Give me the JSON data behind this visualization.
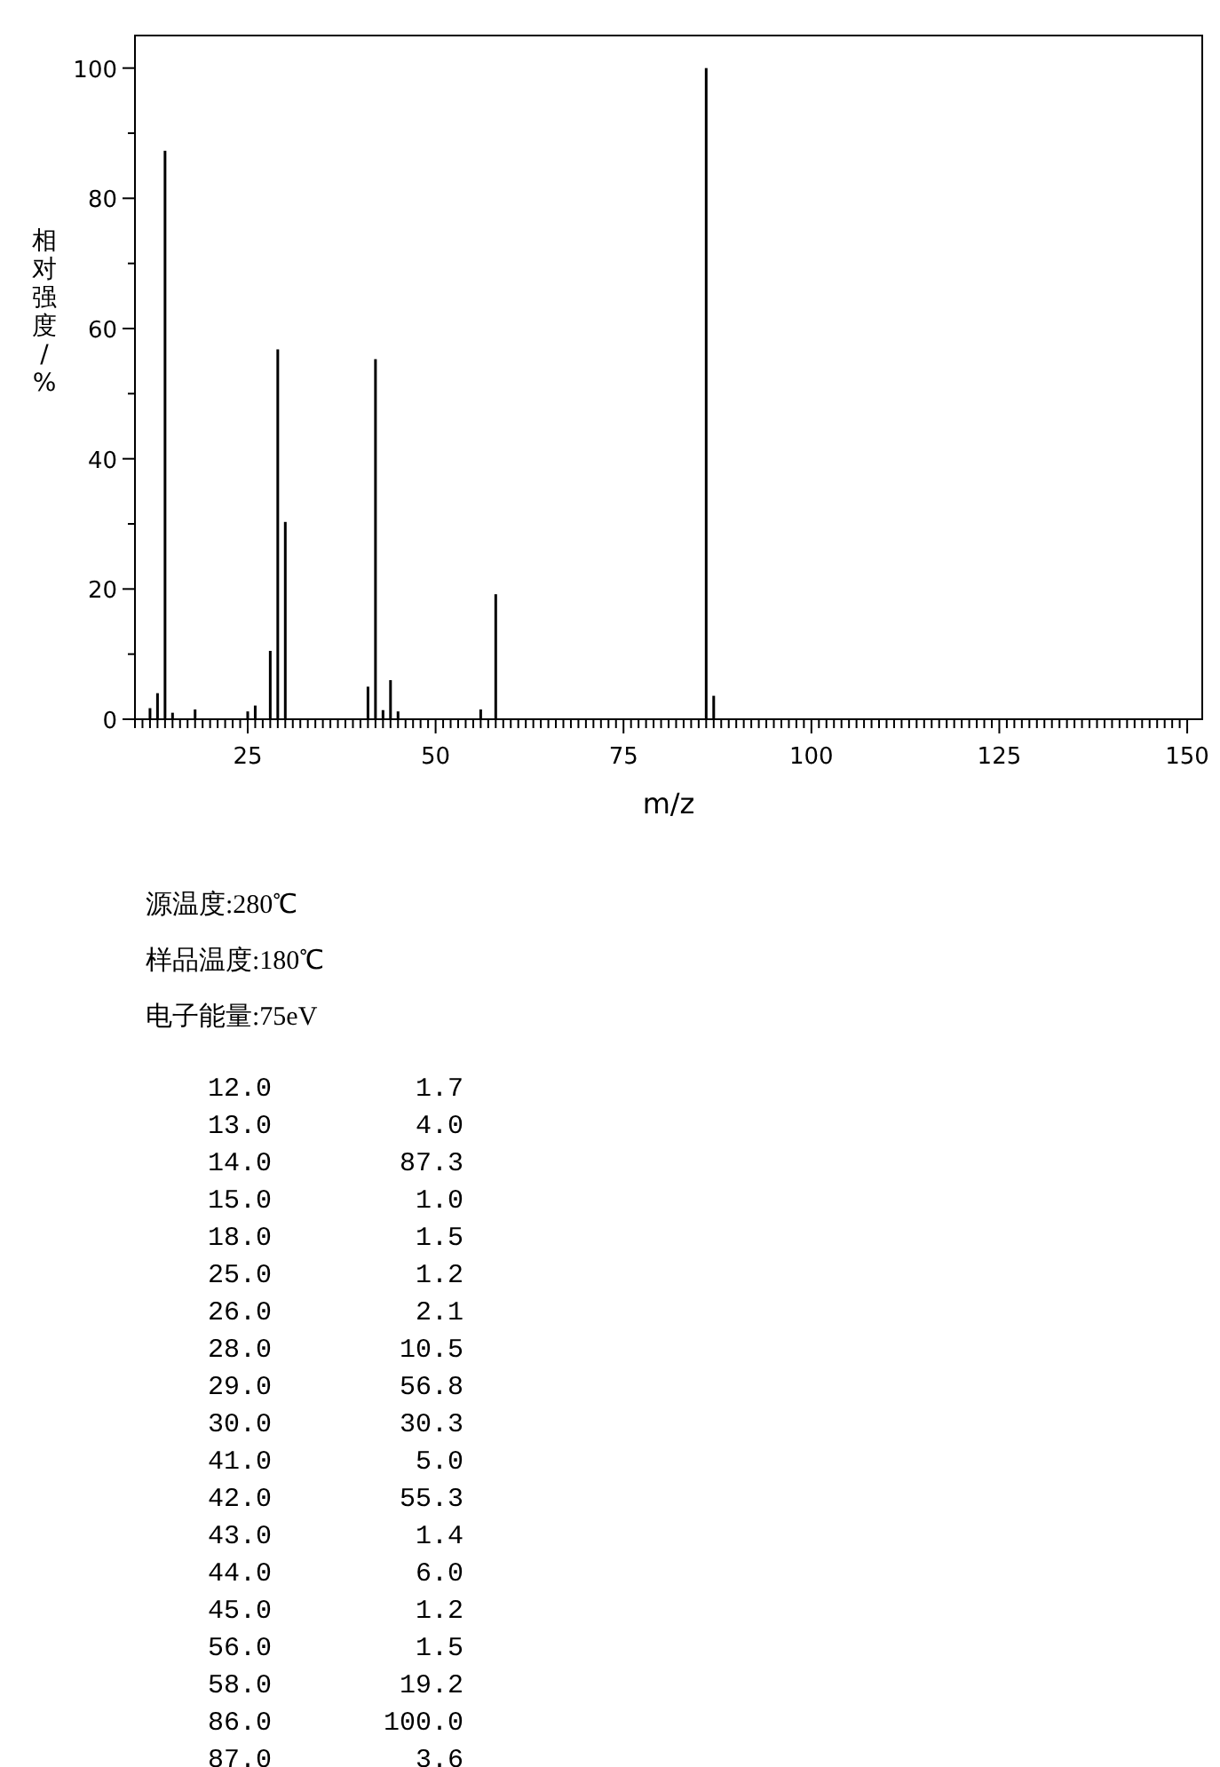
{
  "chart_data": [
    {
      "type": "bar",
      "xlabel": "m/z",
      "ylabel": "相对强度/%",
      "x": [
        12,
        13,
        14,
        15,
        18,
        25,
        26,
        28,
        29,
        30,
        41,
        42,
        43,
        44,
        45,
        56,
        58,
        86,
        87
      ],
      "values": [
        1.7,
        4.0,
        87.3,
        1.0,
        1.5,
        1.2,
        2.1,
        10.5,
        56.8,
        30.3,
        5.0,
        55.3,
        1.4,
        6.0,
        1.2,
        1.5,
        19.2,
        100.0,
        3.6
      ],
      "color": "#000000",
      "xlim": [
        10,
        152
      ],
      "ylim": [
        0,
        105
      ],
      "xticks": [
        {
          "value": 10,
          "label": null
        },
        {
          "value": 11,
          "label": null
        },
        {
          "value": 12,
          "label": null
        },
        {
          "value": 13,
          "label": null
        },
        {
          "value": 14,
          "label": null
        },
        {
          "value": 15,
          "label": null
        },
        {
          "value": 16,
          "label": null
        },
        {
          "value": 17,
          "label": null
        },
        {
          "value": 18,
          "label": null
        },
        {
          "value": 19,
          "label": null
        },
        {
          "value": 20,
          "label": null
        },
        {
          "value": 21,
          "label": null
        },
        {
          "value": 22,
          "label": null
        },
        {
          "value": 23,
          "label": null
        },
        {
          "value": 24,
          "label": null
        },
        25,
        {
          "value": 26,
          "label": null
        },
        {
          "value": 27,
          "label": null
        },
        {
          "value": 28,
          "label": null
        },
        {
          "value": 29,
          "label": null
        },
        {
          "value": 30,
          "label": null
        },
        {
          "value": 31,
          "label": null
        },
        {
          "value": 32,
          "label": null
        },
        {
          "value": 33,
          "label": null
        },
        {
          "value": 34,
          "label": null
        },
        {
          "value": 35,
          "label": null
        },
        {
          "value": 36,
          "label": null
        },
        {
          "value": 37,
          "label": null
        },
        {
          "value": 38,
          "label": null
        },
        {
          "value": 39,
          "label": null
        },
        {
          "value": 40,
          "label": null
        },
        {
          "value": 41,
          "label": null
        },
        {
          "value": 42,
          "label": null
        },
        {
          "value": 43,
          "label": null
        },
        {
          "value": 44,
          "label": null
        },
        {
          "value": 45,
          "label": null
        },
        {
          "value": 46,
          "label": null
        },
        {
          "value": 47,
          "label": null
        },
        {
          "value": 48,
          "label": null
        },
        {
          "value": 49,
          "label": null
        },
        50,
        {
          "value": 51,
          "label": null
        },
        {
          "value": 52,
          "label": null
        },
        {
          "value": 53,
          "label": null
        },
        {
          "value": 54,
          "label": null
        },
        {
          "value": 55,
          "label": null
        },
        {
          "value": 56,
          "label": null
        },
        {
          "value": 57,
          "label": null
        },
        {
          "value": 58,
          "label": null
        },
        {
          "value": 59,
          "label": null
        },
        {
          "value": 60,
          "label": null
        },
        {
          "value": 61,
          "label": null
        },
        {
          "value": 62,
          "label": null
        },
        {
          "value": 63,
          "label": null
        },
        {
          "value": 64,
          "label": null
        },
        {
          "value": 65,
          "label": null
        },
        {
          "value": 66,
          "label": null
        },
        {
          "value": 67,
          "label": null
        },
        {
          "value": 68,
          "label": null
        },
        {
          "value": 69,
          "label": null
        },
        {
          "value": 70,
          "label": null
        },
        {
          "value": 71,
          "label": null
        },
        {
          "value": 72,
          "label": null
        },
        {
          "value": 73,
          "label": null
        },
        {
          "value": 74,
          "label": null
        },
        75,
        {
          "value": 76,
          "label": null
        },
        {
          "value": 77,
          "label": null
        },
        {
          "value": 78,
          "label": null
        },
        {
          "value": 79,
          "label": null
        },
        {
          "value": 80,
          "label": null
        },
        {
          "value": 81,
          "label": null
        },
        {
          "value": 82,
          "label": null
        },
        {
          "value": 83,
          "label": null
        },
        {
          "value": 84,
          "label": null
        },
        {
          "value": 85,
          "label": null
        },
        {
          "value": 86,
          "label": null
        },
        {
          "value": 87,
          "label": null
        },
        {
          "value": 88,
          "label": null
        },
        {
          "value": 89,
          "label": null
        },
        {
          "value": 90,
          "label": null
        },
        {
          "value": 91,
          "label": null
        },
        {
          "value": 92,
          "label": null
        },
        {
          "value": 93,
          "label": null
        },
        {
          "value": 94,
          "label": null
        },
        {
          "value": 95,
          "label": null
        },
        {
          "value": 96,
          "label": null
        },
        {
          "value": 97,
          "label": null
        },
        {
          "value": 98,
          "label": null
        },
        {
          "value": 99,
          "label": null
        },
        100,
        {
          "value": 101,
          "label": null
        },
        {
          "value": 102,
          "label": null
        },
        {
          "value": 103,
          "label": null
        },
        {
          "value": 104,
          "label": null
        },
        {
          "value": 105,
          "label": null
        },
        {
          "value": 106,
          "label": null
        },
        {
          "value": 107,
          "label": null
        },
        {
          "value": 108,
          "label": null
        },
        {
          "value": 109,
          "label": null
        },
        {
          "value": 110,
          "label": null
        },
        {
          "value": 111,
          "label": null
        },
        {
          "value": 112,
          "label": null
        },
        {
          "value": 113,
          "label": null
        },
        {
          "value": 114,
          "label": null
        },
        {
          "value": 115,
          "label": null
        },
        {
          "value": 116,
          "label": null
        },
        {
          "value": 117,
          "label": null
        },
        {
          "value": 118,
          "label": null
        },
        {
          "value": 119,
          "label": null
        },
        {
          "value": 120,
          "label": null
        },
        {
          "value": 121,
          "label": null
        },
        {
          "value": 122,
          "label": null
        },
        {
          "value": 123,
          "label": null
        },
        {
          "value": 124,
          "label": null
        },
        125,
        {
          "value": 126,
          "label": null
        },
        {
          "value": 127,
          "label": null
        },
        {
          "value": 128,
          "label": null
        },
        {
          "value": 129,
          "label": null
        },
        {
          "value": 130,
          "label": null
        },
        {
          "value": 131,
          "label": null
        },
        {
          "value": 132,
          "label": null
        },
        {
          "value": 133,
          "label": null
        },
        {
          "value": 134,
          "label": null
        },
        {
          "value": 135,
          "label": null
        },
        {
          "value": 136,
          "label": null
        },
        {
          "value": 137,
          "label": null
        },
        {
          "value": 138,
          "label": null
        },
        {
          "value": 139,
          "label": null
        },
        {
          "value": 140,
          "label": null
        },
        {
          "value": 141,
          "label": null
        },
        {
          "value": 142,
          "label": null
        },
        {
          "value": 143,
          "label": null
        },
        {
          "value": 144,
          "label": null
        },
        {
          "value": 145,
          "label": null
        },
        {
          "value": 146,
          "label": null
        },
        {
          "value": 147,
          "label": null
        },
        {
          "value": 148,
          "label": null
        },
        {
          "value": 149,
          "label": null
        },
        150
      ],
      "yticks": [
        0,
        {
          "value": 10,
          "label": null
        },
        20,
        {
          "value": 30,
          "label": null
        },
        40,
        {
          "value": 50,
          "label": null
        },
        60,
        {
          "value": 70,
          "label": null
        },
        80,
        {
          "value": 90,
          "label": null
        },
        100
      ],
      "grid": false,
      "annotations": [
        "源温度:280℃",
        "样品温度:180℃",
        "电子能量:75eV"
      ]
    },
    {
      "type": "other",
      "annotations": [
        "12.0         1.7",
        "13.0         4.0",
        "14.0        87.3",
        "15.0         1.0",
        "18.0         1.5",
        "25.0         1.2",
        "26.0         2.1",
        "28.0        10.5",
        "29.0        56.8",
        "30.0        30.3",
        "41.0         5.0",
        "42.0        55.3",
        "43.0         1.4",
        "44.0         6.0",
        "45.0         1.2",
        "56.0         1.5",
        "58.0        19.2",
        "86.0       100.0",
        "87.0         3.6"
      ]
    }
  ]
}
